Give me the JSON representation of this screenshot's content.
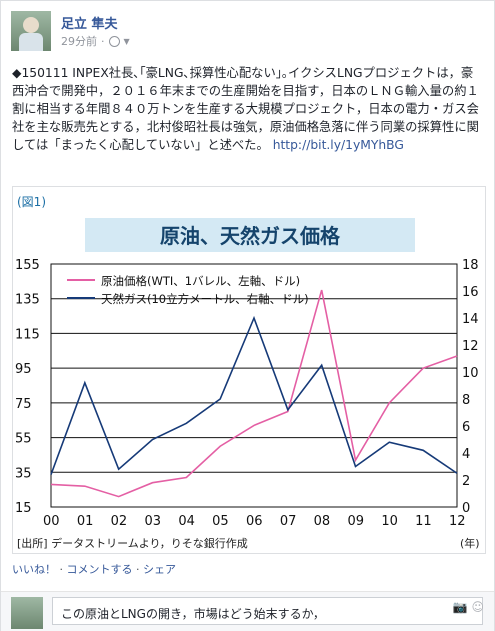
{
  "post": {
    "author": "足立 隼夫",
    "time": "29分前",
    "text": "◆150111 INPEX社長､｢豪LNG､採算性心配ない｣｡イクシスLNGプロジェクトは，豪西沖合で開発中，２０１６年末までの生産開始を目指す，日本のＬＮＧ輸入量の約１割に相当する年間８４０万トンを生産する大規模プロジェクト，日本の電力・ガス会社を主な販売先とする，北村俊昭社長は強気，原油価格急落に伴う同業の採算性に関しては「まったく心配していない」と述べた。",
    "link": "http://bit.ly/1yMYhBG"
  },
  "chart_data": {
    "type": "line",
    "title": "原油、天然ガス価格",
    "figure_label": "(図1)",
    "source": "[出所] データストリームより，りそな銀行作成",
    "x_unit": "(年)",
    "x": [
      "00",
      "01",
      "02",
      "03",
      "04",
      "05",
      "06",
      "07",
      "08",
      "09",
      "10",
      "11",
      "12"
    ],
    "left_axis": [
      15,
      35,
      55,
      75,
      95,
      115,
      135,
      155
    ],
    "right_axis": [
      0,
      2,
      4,
      6,
      8,
      10,
      12,
      14,
      16,
      18
    ],
    "series": [
      {
        "name": "原油価格(WTI、1バレル、左軸、ドル)",
        "color": "#e45fa4",
        "values": [
          28,
          27,
          21,
          29,
          32,
          50,
          62,
          70,
          140,
          42,
          75,
          95,
          102
        ]
      },
      {
        "name": "天然ガス(10立方メートル、右軸、ドル)",
        "color": "#163a78",
        "values": [
          2.4,
          9.2,
          2.8,
          5.0,
          6.2,
          8.0,
          14.0,
          7.2,
          10.5,
          3.0,
          4.8,
          4.2,
          2.5
        ]
      }
    ]
  },
  "actions": [
    "いいね！",
    "コメントする",
    "シェア"
  ],
  "comment": {
    "text": "この原油とLNGの開き，市場はどう始末するか，"
  }
}
